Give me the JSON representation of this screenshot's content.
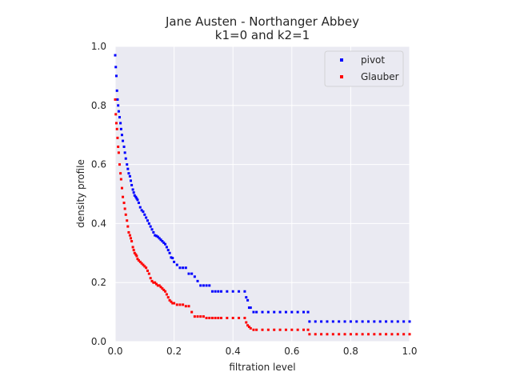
{
  "chart_data": {
    "type": "scatter",
    "title": "Jane Austen - Northanger Abbey",
    "subtitle": "k1=0 and k2=1",
    "xlabel": "filtration level",
    "ylabel": "density profile",
    "xlim": [
      0.0,
      1.0
    ],
    "ylim": [
      0.0,
      1.0
    ],
    "xticks": [
      "0.0",
      "0.2",
      "0.4",
      "0.6",
      "0.8",
      "1.0"
    ],
    "yticks": [
      "0.0",
      "0.2",
      "0.4",
      "0.6",
      "0.8",
      "1.0"
    ],
    "grid": true,
    "legend_position": "top-right",
    "colors": {
      "background": "#eaeaf2",
      "grid": "#ffffff",
      "pivot": "#0000ff",
      "glauber": "#ff0000"
    },
    "series": [
      {
        "name": "pivot",
        "color": "#0000ff",
        "x": [
          0.0,
          0.002,
          0.004,
          0.006,
          0.008,
          0.01,
          0.012,
          0.015,
          0.018,
          0.02,
          0.023,
          0.026,
          0.03,
          0.033,
          0.036,
          0.04,
          0.043,
          0.046,
          0.05,
          0.053,
          0.056,
          0.06,
          0.063,
          0.066,
          0.07,
          0.073,
          0.076,
          0.08,
          0.085,
          0.09,
          0.095,
          0.1,
          0.105,
          0.11,
          0.115,
          0.12,
          0.125,
          0.13,
          0.135,
          0.14,
          0.145,
          0.15,
          0.155,
          0.16,
          0.165,
          0.17,
          0.175,
          0.18,
          0.185,
          0.19,
          0.195,
          0.2,
          0.21,
          0.22,
          0.23,
          0.24,
          0.25,
          0.26,
          0.27,
          0.28,
          0.29,
          0.3,
          0.31,
          0.32,
          0.33,
          0.34,
          0.35,
          0.36,
          0.38,
          0.4,
          0.42,
          0.44,
          0.445,
          0.45,
          0.455,
          0.46,
          0.47,
          0.48,
          0.5,
          0.52,
          0.54,
          0.56,
          0.58,
          0.6,
          0.62,
          0.64,
          0.655,
          0.66,
          0.68,
          0.7,
          0.72,
          0.74,
          0.76,
          0.78,
          0.8,
          0.82,
          0.84,
          0.86,
          0.88,
          0.9,
          0.92,
          0.94,
          0.96,
          0.98,
          1.0
        ],
        "y": [
          0.97,
          0.93,
          0.9,
          0.85,
          0.82,
          0.8,
          0.78,
          0.76,
          0.74,
          0.72,
          0.7,
          0.68,
          0.66,
          0.64,
          0.62,
          0.6,
          0.585,
          0.57,
          0.56,
          0.545,
          0.53,
          0.515,
          0.505,
          0.495,
          0.49,
          0.485,
          0.48,
          0.47,
          0.455,
          0.445,
          0.44,
          0.43,
          0.42,
          0.41,
          0.4,
          0.39,
          0.38,
          0.37,
          0.36,
          0.358,
          0.355,
          0.35,
          0.345,
          0.34,
          0.335,
          0.33,
          0.32,
          0.31,
          0.3,
          0.285,
          0.283,
          0.27,
          0.26,
          0.25,
          0.25,
          0.25,
          0.23,
          0.23,
          0.22,
          0.205,
          0.19,
          0.19,
          0.19,
          0.19,
          0.17,
          0.17,
          0.17,
          0.17,
          0.17,
          0.17,
          0.17,
          0.17,
          0.15,
          0.14,
          0.115,
          0.115,
          0.1,
          0.1,
          0.1,
          0.1,
          0.1,
          0.1,
          0.1,
          0.1,
          0.1,
          0.1,
          0.1,
          0.068,
          0.068,
          0.068,
          0.068,
          0.068,
          0.068,
          0.068,
          0.068,
          0.068,
          0.068,
          0.068,
          0.068,
          0.068,
          0.068,
          0.068,
          0.068,
          0.068,
          0.068
        ]
      },
      {
        "name": "Glauber",
        "color": "#ff0000",
        "x": [
          0.0,
          0.002,
          0.004,
          0.006,
          0.008,
          0.01,
          0.012,
          0.015,
          0.018,
          0.02,
          0.023,
          0.026,
          0.03,
          0.033,
          0.036,
          0.04,
          0.043,
          0.046,
          0.05,
          0.053,
          0.056,
          0.06,
          0.063,
          0.066,
          0.07,
          0.073,
          0.076,
          0.08,
          0.085,
          0.09,
          0.095,
          0.1,
          0.105,
          0.11,
          0.115,
          0.12,
          0.125,
          0.13,
          0.135,
          0.14,
          0.145,
          0.15,
          0.155,
          0.16,
          0.165,
          0.17,
          0.175,
          0.18,
          0.185,
          0.19,
          0.195,
          0.2,
          0.21,
          0.22,
          0.23,
          0.24,
          0.25,
          0.26,
          0.27,
          0.28,
          0.29,
          0.3,
          0.31,
          0.32,
          0.33,
          0.34,
          0.35,
          0.36,
          0.38,
          0.4,
          0.42,
          0.44,
          0.445,
          0.45,
          0.455,
          0.46,
          0.47,
          0.48,
          0.5,
          0.52,
          0.54,
          0.56,
          0.58,
          0.6,
          0.62,
          0.64,
          0.655,
          0.66,
          0.68,
          0.7,
          0.72,
          0.74,
          0.76,
          0.78,
          0.8,
          0.82,
          0.84,
          0.86,
          0.88,
          0.9,
          0.92,
          0.94,
          0.96,
          0.98,
          1.0
        ],
        "y": [
          0.82,
          0.77,
          0.74,
          0.72,
          0.69,
          0.66,
          0.64,
          0.6,
          0.57,
          0.55,
          0.52,
          0.49,
          0.47,
          0.45,
          0.43,
          0.41,
          0.39,
          0.37,
          0.36,
          0.35,
          0.34,
          0.32,
          0.31,
          0.3,
          0.295,
          0.29,
          0.28,
          0.275,
          0.27,
          0.265,
          0.26,
          0.255,
          0.25,
          0.24,
          0.23,
          0.215,
          0.205,
          0.2,
          0.2,
          0.195,
          0.19,
          0.19,
          0.185,
          0.18,
          0.175,
          0.17,
          0.16,
          0.15,
          0.14,
          0.135,
          0.13,
          0.13,
          0.125,
          0.125,
          0.125,
          0.12,
          0.12,
          0.1,
          0.085,
          0.085,
          0.085,
          0.085,
          0.08,
          0.08,
          0.08,
          0.08,
          0.08,
          0.08,
          0.08,
          0.08,
          0.08,
          0.08,
          0.065,
          0.055,
          0.05,
          0.045,
          0.04,
          0.04,
          0.04,
          0.04,
          0.04,
          0.04,
          0.04,
          0.04,
          0.04,
          0.04,
          0.04,
          0.025,
          0.025,
          0.025,
          0.025,
          0.025,
          0.025,
          0.025,
          0.025,
          0.025,
          0.025,
          0.025,
          0.025,
          0.025,
          0.025,
          0.025,
          0.025,
          0.025,
          0.025
        ]
      }
    ]
  }
}
